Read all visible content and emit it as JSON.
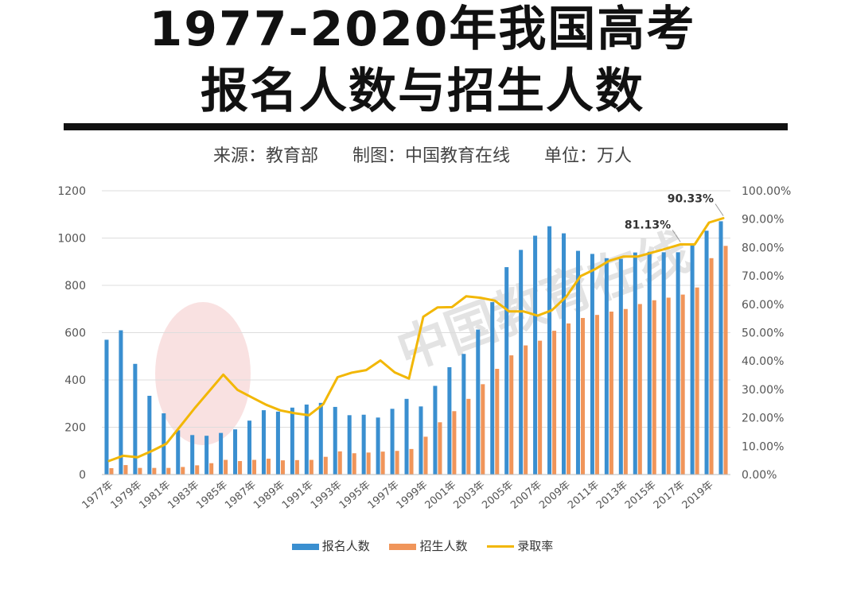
{
  "header": {
    "title_line1": "1977-2020年我国高考",
    "title_line2": "报名人数与招生人数",
    "source": "来源：教育部",
    "made_by": "制图：中国教育在线",
    "unit": "单位：万人"
  },
  "chart_data": {
    "type": "bar",
    "categories": [
      "1977年",
      "1978年",
      "1979年",
      "1980年",
      "1981年",
      "1982年",
      "1983年",
      "1984年",
      "1985年",
      "1986年",
      "1987年",
      "1988年",
      "1989年",
      "1990年",
      "1991年",
      "1992年",
      "1993年",
      "1994年",
      "1995年",
      "1996年",
      "1997年",
      "1998年",
      "1999年",
      "2000年",
      "2001年",
      "2002年",
      "2003年",
      "2004年",
      "2005年",
      "2006年",
      "2007年",
      "2008年",
      "2009年",
      "2010年",
      "2011年",
      "2012年",
      "2013年",
      "2014年",
      "2015年",
      "2016年",
      "2017年",
      "2018年",
      "2019年",
      "2020年"
    ],
    "x_tick_labels": [
      "1977年",
      "1979年",
      "1981年",
      "1983年",
      "1985年",
      "1987年",
      "1989年",
      "1991年",
      "1993年",
      "1995年",
      "1997年",
      "1999年",
      "2001年",
      "2003年",
      "2005年",
      "2007年",
      "2009年",
      "2011年",
      "2013年",
      "2015年",
      "2017年",
      "2019年"
    ],
    "series": [
      {
        "name": "报名人数",
        "color": "#3a8fd0",
        "axis": "left",
        "values": [
          570,
          610,
          468,
          333,
          259,
          187,
          167,
          164,
          176,
          191,
          228,
          272,
          266,
          283,
          296,
          303,
          286,
          251,
          253,
          241,
          278,
          320,
          288,
          375,
          454,
          510,
          613,
          729,
          877,
          950,
          1010,
          1050,
          1020,
          946,
          933,
          915,
          912,
          939,
          942,
          940,
          940,
          975,
          1031,
          1071
        ]
      },
      {
        "name": "招生人数",
        "color": "#f0955a",
        "axis": "left",
        "values": [
          27,
          40,
          28,
          28,
          28,
          32,
          39,
          48,
          62,
          57,
          62,
          67,
          60,
          61,
          62,
          75,
          98,
          90,
          93,
          97,
          100,
          108,
          160,
          221,
          268,
          320,
          382,
          447,
          504,
          546,
          566,
          608,
          639,
          662,
          675,
          689,
          700,
          721,
          737,
          748,
          761,
          791,
          915,
          967
        ]
      },
      {
        "name": "录取率",
        "color": "#f2b705",
        "axis": "right",
        "values": [
          4.8,
          6.6,
          6.1,
          8.3,
          10.8,
          17.1,
          23.4,
          29.3,
          35.2,
          29.8,
          27.2,
          24.6,
          22.6,
          21.6,
          20.9,
          24.8,
          34.3,
          35.9,
          36.8,
          40.2,
          36.0,
          33.8,
          55.6,
          58.9,
          59.0,
          62.8,
          62.3,
          61.3,
          57.5,
          57.5,
          56.0,
          57.9,
          62.6,
          69.9,
          72.3,
          75.3,
          76.8,
          76.8,
          78.2,
          79.6,
          81.13,
          81.1,
          88.8,
          90.33
        ]
      }
    ],
    "y_left": {
      "min": 0,
      "max": 1200,
      "ticks": [
        "0",
        "200",
        "400",
        "600",
        "800",
        "1000",
        "1200"
      ]
    },
    "y_right": {
      "min": 0,
      "max": 100,
      "ticks": [
        "0.00%",
        "10.00%",
        "20.00%",
        "30.00%",
        "40.00%",
        "50.00%",
        "60.00%",
        "70.00%",
        "80.00%",
        "90.00%",
        "100.00%"
      ]
    },
    "annotations": [
      {
        "text": "81.13%",
        "index": 40
      },
      {
        "text": "90.33%",
        "index": 43
      }
    ],
    "watermark": "中国教育在线",
    "grid": true,
    "legend_position": "bottom"
  }
}
